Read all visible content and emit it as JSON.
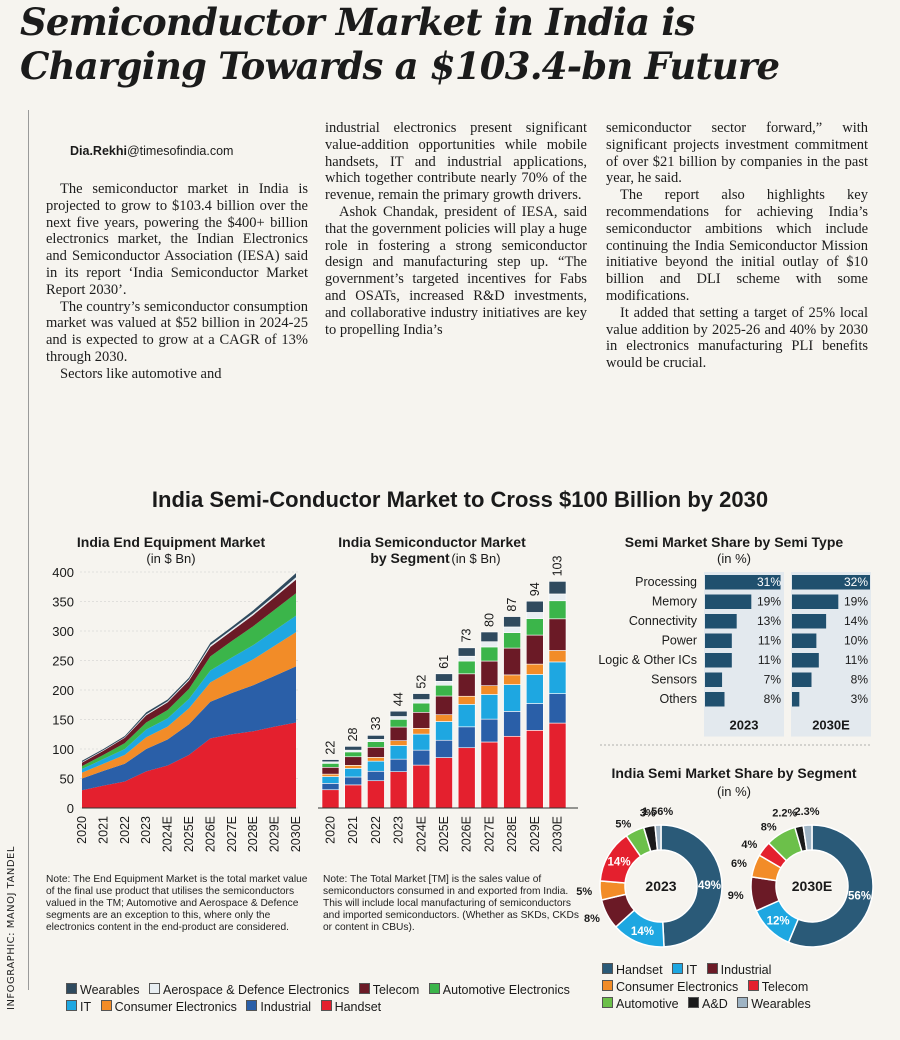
{
  "headline": {
    "line1": "Semiconductor Market in India is",
    "line2": "Charging Towards a $103.4-bn Future"
  },
  "byline": {
    "name": "Dia.Rekhi",
    "domain": "@timesofindia.com"
  },
  "article": {
    "col1": [
      "The semiconductor market in India is projected to grow to $103.4 billion over the next five years, powering the $400+ billion electronics market, the Indian Electronics and Semiconductor Association (IESA) said in its report ‘India Semiconductor Market Report 2030’.",
      "The country’s semiconductor consumption market was valued at $52 billion in 2024-25 and is expected to grow at a CAGR of 13% through 2030.",
      "Sectors like automotive and"
    ],
    "col2": [
      "industrial electronics present significant value-addition opportunities while mobile handsets, IT and industrial applications, which together contribute nearly 70% of the revenue, remain the primary growth drivers.",
      "Ashok Chandak, president of IESA, said that the government policies will play a huge role in fostering a strong semiconductor design and manufacturing step up. “The government’s targeted incentives for Fabs and OSATs, increased R&D investments, and collaborative industry initiatives are key to propelling India’s"
    ],
    "col3": [
      "semiconductor sector forward,” with significant projects investment commitment of over $21 billion by companies in the past year, he said.",
      "The report also highlights key recommendations for achieving India’s semiconductor ambitions which include continuing the India Semiconductor Mission initiative beyond the initial outlay of $10 billion and DLI scheme with some modifications.",
      "It added that setting a target of 25% local value addition by 2025-26 and 40% by 2030 in electronics manufacturing PLI benefits would be crucial."
    ]
  },
  "infographic": {
    "title": "India Semi-Conductor Market to Cross $100 Billion by 2030",
    "credit": "INFOGRAPHIC: MANOJ TANDEL",
    "note1": "Note: The End Equipment Market is the total market value of the final use product that utilises the semiconductors valued in the TM; Automotive and Aerospace & Defence segments are an exception to this, where only the electronics content in the end-product are considered.",
    "note2": "Note: The Total Market [TM] is the sales value of semiconductors consumed in and exported from India. This will include local manufacturing of semiconductors and imported semiconductors. (Whether as SKDs, CKDs or content in CBUs).",
    "legend_main": [
      {
        "label": "Wearables",
        "color": "#2f4a5e"
      },
      {
        "label": "Aerospace & Defence Electronics",
        "color": "#e8eef2"
      },
      {
        "label": "Telecom",
        "color": "#6b1a26"
      },
      {
        "label": "Automotive Electronics",
        "color": "#3bb54a"
      },
      {
        "label": "IT",
        "color": "#1ea7e1"
      },
      {
        "label": "Consumer Electronics",
        "color": "#f28c28"
      },
      {
        "label": "Industrial",
        "color": "#2a5fa8"
      },
      {
        "label": "Handset",
        "color": "#e4202e"
      }
    ],
    "legend_donut": [
      {
        "label": "Handset",
        "color": "#2a5a78"
      },
      {
        "label": "IT",
        "color": "#1ea7e1"
      },
      {
        "label": "Industrial",
        "color": "#6b1a26"
      },
      {
        "label": "Consumer Electronics",
        "color": "#f28c28"
      },
      {
        "label": "Telecom",
        "color": "#e4202e"
      },
      {
        "label": "Automotive",
        "color": "#6cc04a"
      },
      {
        "label": "A&D",
        "color": "#1a1a1a"
      },
      {
        "label": "Wearables",
        "color": "#9fb4c4"
      }
    ]
  },
  "chart_data": [
    {
      "type": "area",
      "title": "India End Equipment Market",
      "subtitle": "(in $ Bn)",
      "ylim": [
        0,
        400
      ],
      "yticks": [
        0,
        50,
        100,
        150,
        200,
        250,
        300,
        350,
        400
      ],
      "x": [
        "2020",
        "2021",
        "2022",
        "2023",
        "2024E",
        "2025E",
        "2026E",
        "2027E",
        "2028E",
        "2029E",
        "2030E"
      ],
      "series": [
        {
          "name": "Handset",
          "color": "#e4202e",
          "values": [
            30,
            38,
            45,
            62,
            72,
            90,
            118,
            125,
            130,
            138,
            145
          ]
        },
        {
          "name": "Industrial",
          "color": "#2a5fa8",
          "values": [
            20,
            25,
            30,
            38,
            44,
            52,
            62,
            70,
            78,
            86,
            95
          ]
        },
        {
          "name": "Consumer Electronics",
          "color": "#f28c28",
          "values": [
            10,
            12,
            15,
            20,
            22,
            27,
            33,
            38,
            44,
            51,
            58
          ]
        },
        {
          "name": "IT",
          "color": "#1ea7e1",
          "values": [
            6,
            8,
            10,
            13,
            14,
            16,
            20,
            22,
            24,
            26,
            28
          ]
        },
        {
          "name": "Automotive Electronics",
          "color": "#3bb54a",
          "values": [
            5,
            7,
            10,
            12,
            14,
            17,
            24,
            28,
            32,
            35,
            38
          ]
        },
        {
          "name": "Telecom",
          "color": "#6b1a26",
          "values": [
            6,
            7,
            9,
            12,
            13,
            14,
            16,
            17,
            19,
            21,
            23
          ]
        },
        {
          "name": "Aerospace & Defence Electronics",
          "color": "#e8eef2",
          "values": [
            1,
            1,
            1,
            2,
            2,
            2,
            3,
            3,
            3,
            3,
            4
          ]
        },
        {
          "name": "Wearables",
          "color": "#2f4a5e",
          "values": [
            2,
            2,
            2,
            3,
            3,
            3,
            4,
            4,
            5,
            6,
            7
          ]
        }
      ]
    },
    {
      "type": "bar",
      "title": "India Semiconductor Market",
      "subtitle_bold": "by Segment",
      "subtitle": "(in $ Bn)",
      "x": [
        "2020",
        "2021",
        "2022",
        "2023",
        "2024E",
        "2025E",
        "2026E",
        "2027E",
        "2028E",
        "2029E",
        "2030E"
      ],
      "totals": [
        22,
        28,
        33,
        44,
        52,
        61,
        73,
        80,
        87,
        94,
        103
      ],
      "series": [
        {
          "name": "Handset",
          "color": "#e4202e",
          "values": [
            8.3,
            10.5,
            12.4,
            16.5,
            19.5,
            22.9,
            27.4,
            30.0,
            32.6,
            35.3,
            38.6
          ]
        },
        {
          "name": "Industrial",
          "color": "#2a5fa8",
          "values": [
            2.9,
            3.6,
            4.3,
            5.7,
            6.8,
            7.9,
            9.5,
            10.4,
            11.3,
            12.2,
            13.4
          ]
        },
        {
          "name": "IT",
          "color": "#1ea7e1",
          "values": [
            3.1,
            3.9,
            4.6,
            6.2,
            7.3,
            8.5,
            10.2,
            11.2,
            12.2,
            13.2,
            14.4
          ]
        },
        {
          "name": "Consumer Electronics",
          "color": "#f28c28",
          "values": [
            1.1,
            1.4,
            1.7,
            2.2,
            2.6,
            3.1,
            3.7,
            4.0,
            4.4,
            4.7,
            5.2
          ]
        },
        {
          "name": "Telecom",
          "color": "#6b1a26",
          "values": [
            3.1,
            3.9,
            4.6,
            6.2,
            7.3,
            8.5,
            10.2,
            11.2,
            12.2,
            13.2,
            14.4
          ]
        },
        {
          "name": "Automotive Electronics",
          "color": "#3bb54a",
          "values": [
            1.8,
            2.2,
            2.6,
            3.5,
            4.2,
            4.9,
            5.8,
            6.4,
            7.0,
            7.5,
            8.2
          ]
        },
        {
          "name": "Aerospace & Defence Electronics",
          "color": "#e8eef2",
          "values": [
            0.7,
            0.8,
            1.0,
            1.3,
            1.6,
            1.8,
            2.2,
            2.4,
            2.6,
            2.8,
            3.1
          ]
        },
        {
          "name": "Wearables",
          "color": "#2f4a5e",
          "values": [
            1.0,
            1.7,
            1.8,
            2.4,
            2.7,
            3.4,
            3.8,
            4.4,
            4.7,
            5.1,
            5.7
          ]
        }
      ]
    },
    {
      "type": "bar",
      "title": "Semi Market Share by Semi Type",
      "subtitle": "(in %)",
      "categories": [
        "Processing",
        "Memory",
        "Connectivity",
        "Power",
        "Logic & Other ICs",
        "Sensors",
        "Others"
      ],
      "series": [
        {
          "name": "2023",
          "values": [
            31,
            19,
            13,
            11,
            11,
            7,
            8
          ],
          "labels": [
            "31%",
            "19%",
            "13%",
            "11%",
            "11%",
            "7%",
            "8%"
          ]
        },
        {
          "name": "2030E",
          "values": [
            32,
            19,
            14,
            10,
            11,
            8,
            3
          ],
          "labels": [
            "32%",
            "19%",
            "14%",
            "10%",
            "11%",
            "8%",
            "3%"
          ]
        }
      ]
    },
    {
      "type": "pie",
      "title": "India Semi Market Share by Segment",
      "subtitle": "(in %)",
      "charts": [
        {
          "name": "2023",
          "slices": [
            {
              "label": "Handset",
              "value": 49,
              "text": "49%",
              "color": "#2a5a78"
            },
            {
              "label": "IT",
              "value": 14,
              "text": "14%",
              "color": "#1ea7e1"
            },
            {
              "label": "Industrial",
              "value": 8,
              "text": "8%",
              "color": "#6b1a26"
            },
            {
              "label": "Consumer Electronics",
              "value": 5,
              "text": "5%",
              "color": "#f28c28"
            },
            {
              "label": "Telecom",
              "value": 14,
              "text": "14%",
              "color": "#e4202e"
            },
            {
              "label": "Automotive",
              "value": 5,
              "text": "5%",
              "color": "#6cc04a"
            },
            {
              "label": "A&D",
              "value": 3,
              "text": "3%",
              "color": "#1a1a1a"
            },
            {
              "label": "Wearables",
              "value": 1.56,
              "text": "1.56%",
              "color": "#9fb4c4"
            }
          ]
        },
        {
          "name": "2030E",
          "slices": [
            {
              "label": "Handset",
              "value": 56,
              "text": "56%",
              "color": "#2a5a78"
            },
            {
              "label": "IT",
              "value": 12,
              "text": "12%",
              "color": "#1ea7e1"
            },
            {
              "label": "Industrial",
              "value": 9,
              "text": "9%",
              "color": "#6b1a26"
            },
            {
              "label": "Consumer Electronics",
              "value": 6,
              "text": "6%",
              "color": "#f28c28"
            },
            {
              "label": "Telecom",
              "value": 4,
              "text": "4%",
              "color": "#e4202e"
            },
            {
              "label": "Automotive",
              "value": 8,
              "text": "8%",
              "color": "#6cc04a"
            },
            {
              "label": "A&D",
              "value": 2.2,
              "text": "2.2%",
              "color": "#1a1a1a"
            },
            {
              "label": "Wearables",
              "value": 2.3,
              "text": "2.3%",
              "color": "#9fb4c4"
            }
          ]
        }
      ]
    }
  ]
}
